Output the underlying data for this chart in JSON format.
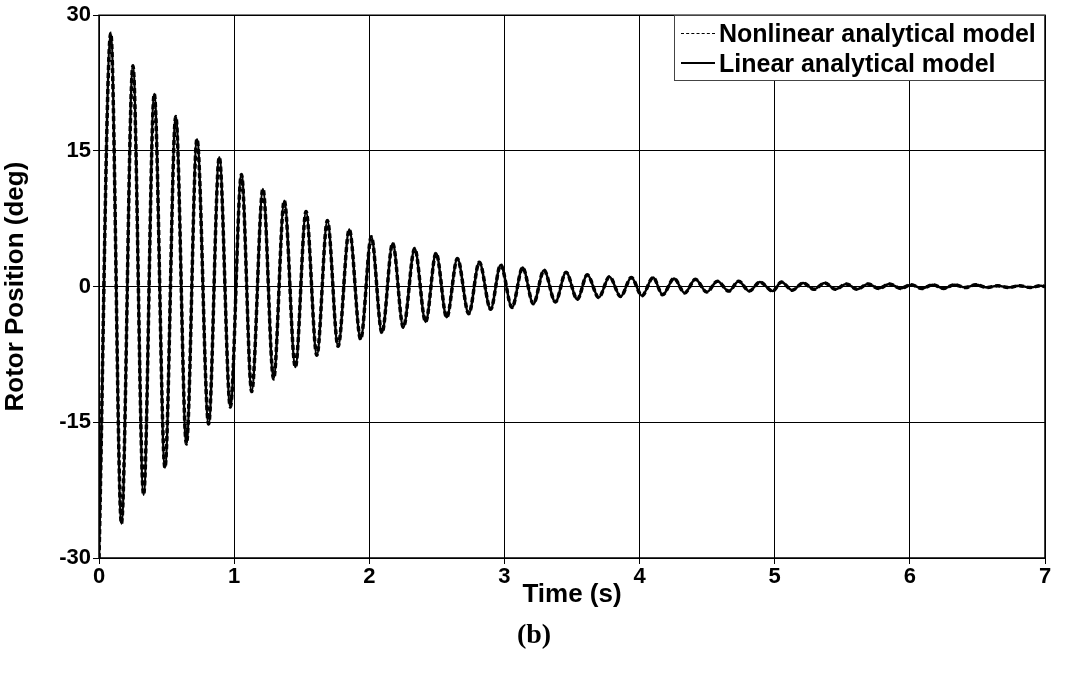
{
  "chart_data": {
    "type": "line",
    "xlabel": "Time (s)",
    "ylabel": "Rotor Position (deg)",
    "annotations": [
      "(b)"
    ],
    "xlim": [
      0,
      7
    ],
    "xticks": [
      0,
      1,
      2,
      3,
      4,
      5,
      6,
      7
    ],
    "ylim": [
      -30,
      30
    ],
    "yticks": [
      -30,
      -15,
      0,
      15,
      30
    ],
    "grid": true,
    "legend": "top right",
    "marker": "none",
    "x": [
      0,
      0.087,
      0.166,
      0.251,
      0.33,
      0.409,
      0.488,
      0.568,
      0.647,
      0.725,
      0.811,
      0.89,
      0.972,
      1.054,
      1.13,
      1.213,
      1.292,
      1.371,
      1.453,
      1.532,
      1.612,
      1.69,
      1.769,
      1.852,
      1.936,
      2.015,
      2.094,
      2.173,
      2.252,
      2.336,
      2.417,
      2.494,
      2.573,
      2.652,
      2.736,
      2.814,
      2.898,
      2.972,
      3.056,
      3.135,
      3.214,
      3.293,
      3.377,
      3.456,
      3.539,
      3.613,
      3.698,
      3.777,
      3.86,
      3.939,
      4.018,
      4.1,
      4.171,
      4.255,
      4.334,
      4.413,
      4.497,
      4.576,
      4.66,
      4.733,
      4.812,
      4.891,
      4.985,
      5.049,
      5.13,
      5.21,
      5.29,
      5.37,
      5.45,
      5.53,
      5.61,
      5.69,
      5.77,
      5.85,
      5.93,
      6.01,
      6.09,
      6.17,
      6.25,
      6.33,
      6.41,
      6.49,
      6.57,
      6.65,
      6.73,
      6.81,
      6.89,
      6.97,
      7
    ],
    "series": [
      {
        "name": "Linear analytical model",
        "color": "#000000",
        "line_style": "solid",
        "values": [
          -30,
          28.0,
          -26.2,
          24.4,
          -23.0,
          21.3,
          -20.0,
          18.8,
          -17.4,
          16.3,
          -15.2,
          14.3,
          -13.3,
          12.4,
          -11.6,
          10.8,
          -10.2,
          9.5,
          -8.9,
          8.3,
          -7.6,
          7.3,
          -6.6,
          6.3,
          -5.8,
          5.5,
          -5.1,
          4.8,
          -4.5,
          4.2,
          -3.9,
          3.7,
          -3.4,
          3.1,
          -3.0,
          2.7,
          -2.5,
          2.4,
          -2.3,
          2.1,
          -1.9,
          1.8,
          -1.7,
          1.6,
          -1.4,
          1.3,
          -1.2,
          1.1,
          -1.1,
          1.0,
          -1.0,
          1.0,
          -0.9,
          0.9,
          -0.7,
          0.8,
          -0.6,
          0.6,
          -0.5,
          0.6,
          -0.5,
          0.5,
          -0.5,
          0.5,
          -0.4,
          0.4,
          -0.3,
          0.4,
          -0.3,
          0.3,
          -0.3,
          0.3,
          -0.2,
          0.3,
          -0.2,
          0.2,
          -0.2,
          0.2,
          -0.2,
          0.2,
          -0.1,
          0.2,
          -0.1,
          0.1,
          -0.1,
          0.1,
          -0.1,
          0.1,
          0
        ]
      },
      {
        "name": "Nonlinear analytical model",
        "color": "#000000",
        "line_style": "dashed",
        "values": [
          -30,
          28.0,
          -26.2,
          24.4,
          -23.0,
          21.3,
          -20.0,
          18.8,
          -17.4,
          16.3,
          -15.2,
          14.3,
          -13.3,
          12.4,
          -11.6,
          10.8,
          -10.2,
          9.5,
          -8.9,
          8.3,
          -7.6,
          7.3,
          -6.6,
          6.3,
          -5.8,
          5.5,
          -5.1,
          4.8,
          -4.5,
          4.2,
          -3.9,
          3.7,
          -3.4,
          3.1,
          -3.0,
          2.7,
          -2.5,
          2.4,
          -2.3,
          2.1,
          -1.9,
          1.8,
          -1.7,
          1.6,
          -1.4,
          1.3,
          -1.2,
          1.1,
          -1.1,
          1.0,
          -1.0,
          1.0,
          -0.9,
          0.9,
          -0.7,
          0.8,
          -0.6,
          0.6,
          -0.5,
          0.6,
          -0.5,
          0.5,
          -0.5,
          0.5,
          -0.4,
          0.4,
          -0.3,
          0.4,
          -0.3,
          0.3,
          -0.3,
          0.3,
          -0.2,
          0.3,
          -0.2,
          0.2,
          -0.2,
          0.2,
          -0.2,
          0.2,
          -0.1,
          0.2,
          -0.1,
          0.1,
          -0.1,
          0.1,
          -0.1,
          0.1,
          0
        ]
      }
    ]
  }
}
